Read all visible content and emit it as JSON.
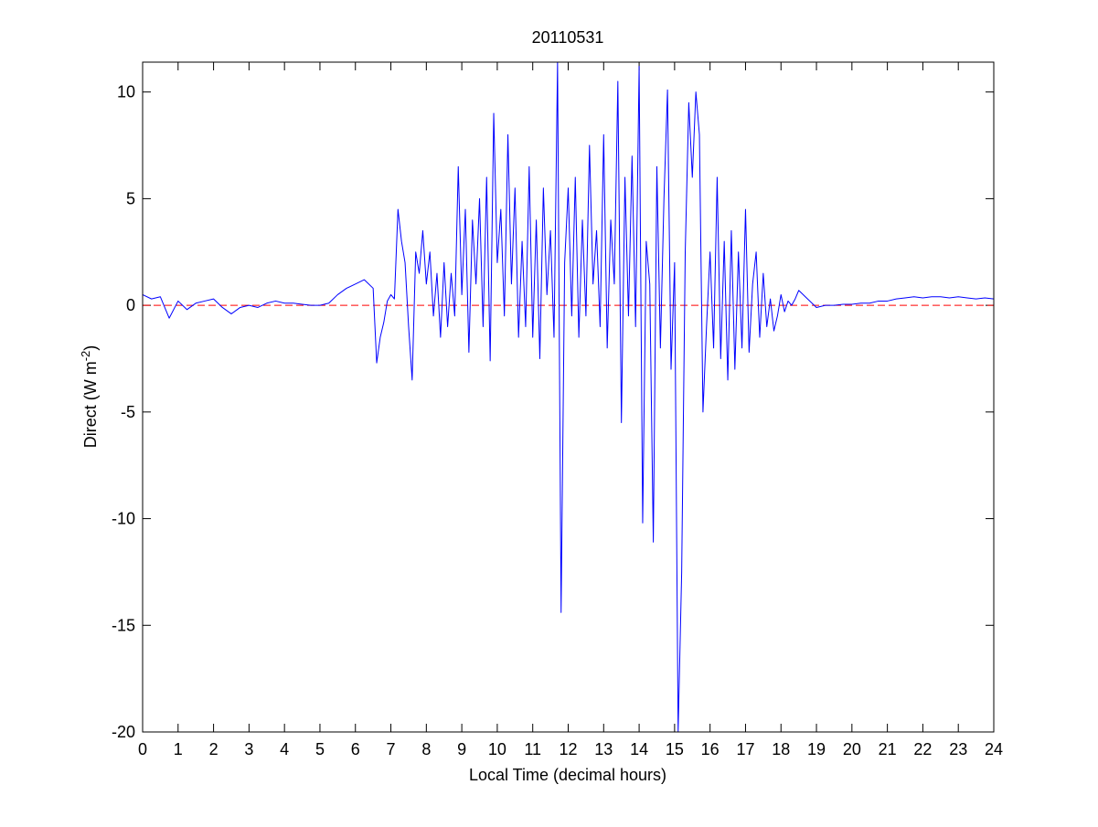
{
  "chart_data": {
    "type": "line",
    "title": "20110531",
    "x_label": "Local Time (decimal hours)",
    "y_label": {
      "text": "Direct (W m",
      "superscript": "-2",
      "suffix": ")"
    },
    "xlim": [
      0,
      24
    ],
    "ylim": [
      -20,
      11.4
    ],
    "xticks": [
      0,
      1,
      2,
      3,
      4,
      5,
      6,
      7,
      8,
      9,
      10,
      11,
      12,
      13,
      14,
      15,
      16,
      17,
      18,
      19,
      20,
      21,
      22,
      23,
      24
    ],
    "yticks": [
      -20,
      -15,
      -10,
      -5,
      0,
      5,
      10
    ],
    "reference_line": {
      "value": 0,
      "color": "#ff0000",
      "style": "dashed"
    },
    "x": [
      0,
      0.25,
      0.5,
      0.75,
      1,
      1.25,
      1.5,
      1.75,
      2,
      2.25,
      2.5,
      2.75,
      3,
      3.25,
      3.5,
      3.75,
      4,
      4.25,
      4.5,
      4.75,
      5,
      5.25,
      5.5,
      5.75,
      6,
      6.25,
      6.5,
      6.6,
      6.7,
      6.8,
      6.9,
      7.0,
      7.1,
      7.2,
      7.3,
      7.4,
      7.5,
      7.6,
      7.7,
      7.8,
      7.9,
      8.0,
      8.1,
      8.2,
      8.3,
      8.4,
      8.5,
      8.6,
      8.7,
      8.8,
      8.9,
      9.0,
      9.1,
      9.2,
      9.3,
      9.4,
      9.5,
      9.6,
      9.7,
      9.8,
      9.9,
      10.0,
      10.1,
      10.2,
      10.3,
      10.4,
      10.5,
      10.6,
      10.7,
      10.8,
      10.9,
      11.0,
      11.1,
      11.2,
      11.3,
      11.4,
      11.5,
      11.6,
      11.7,
      11.8,
      11.9,
      12.0,
      12.1,
      12.2,
      12.3,
      12.4,
      12.5,
      12.6,
      12.7,
      12.8,
      12.9,
      13.0,
      13.1,
      13.2,
      13.3,
      13.4,
      13.5,
      13.6,
      13.7,
      13.8,
      13.9,
      14.0,
      14.1,
      14.2,
      14.3,
      14.4,
      14.5,
      14.6,
      14.7,
      14.8,
      14.9,
      15.0,
      15.1,
      15.2,
      15.3,
      15.4,
      15.5,
      15.6,
      15.7,
      15.8,
      15.9,
      16.0,
      16.1,
      16.2,
      16.3,
      16.4,
      16.5,
      16.6,
      16.7,
      16.8,
      16.9,
      17.0,
      17.1,
      17.2,
      17.3,
      17.4,
      17.5,
      17.6,
      17.7,
      17.8,
      17.9,
      18.0,
      18.1,
      18.2,
      18.3,
      18.4,
      18.5,
      18.75,
      19,
      19.25,
      19.5,
      19.75,
      20,
      20.25,
      20.5,
      20.75,
      21,
      21.25,
      21.5,
      21.75,
      22,
      22.25,
      22.5,
      22.75,
      23,
      23.25,
      23.5,
      23.75,
      24
    ],
    "series": [
      {
        "color": "#0000ff",
        "values": [
          0.5,
          0.3,
          0.4,
          -0.6,
          0.2,
          -0.2,
          0.1,
          0.2,
          0.3,
          -0.1,
          -0.4,
          -0.1,
          0,
          -0.1,
          0.1,
          0.2,
          0.1,
          0.1,
          0.05,
          0,
          0,
          0.1,
          0.5,
          0.8,
          1.0,
          1.2,
          0.8,
          -2.7,
          -1.5,
          -0.8,
          0.2,
          0.5,
          0.3,
          4.5,
          3.0,
          2.0,
          -1.0,
          -3.5,
          2.5,
          1.5,
          3.5,
          1.0,
          2.5,
          -0.5,
          1.5,
          -1.5,
          2.0,
          -1.0,
          1.5,
          -0.5,
          6.5,
          0.5,
          4.5,
          -2.2,
          4.0,
          1.0,
          5.0,
          -1.0,
          6.0,
          -2.6,
          9.0,
          2.0,
          4.5,
          -0.5,
          8.0,
          1.0,
          5.5,
          -1.5,
          3.0,
          -1.0,
          6.5,
          -1.5,
          4.0,
          -2.5,
          5.5,
          0.5,
          3.5,
          -1.5,
          11.4,
          -14.4,
          2.0,
          5.5,
          -0.5,
          6.0,
          -1.5,
          4.0,
          -0.5,
          7.5,
          1.0,
          3.5,
          -1.0,
          8.0,
          -2.0,
          4.0,
          1.0,
          10.5,
          -5.5,
          6.0,
          -0.5,
          7.0,
          -1.0,
          11.2,
          -10.2,
          3.0,
          1.0,
          -11.1,
          6.5,
          -2.0,
          5.0,
          10.1,
          -3.0,
          2.0,
          -20,
          -12.5,
          2.5,
          9.5,
          6.0,
          10.0,
          8.0,
          -5.0,
          -1.0,
          2.5,
          -2.0,
          6.0,
          -2.5,
          3.0,
          -3.5,
          3.5,
          -3.0,
          2.5,
          -2.0,
          4.5,
          -2.2,
          1.0,
          2.5,
          -1.5,
          1.5,
          -1.0,
          0.3,
          -1.2,
          -0.5,
          0.5,
          -0.3,
          0.2,
          0.0,
          0.3,
          0.7,
          0.3,
          -0.1,
          0,
          0,
          0.05,
          0.05,
          0.1,
          0.1,
          0.2,
          0.2,
          0.3,
          0.35,
          0.4,
          0.35,
          0.4,
          0.4,
          0.35,
          0.4,
          0.35,
          0.3,
          0.35,
          0.3
        ]
      }
    ]
  }
}
